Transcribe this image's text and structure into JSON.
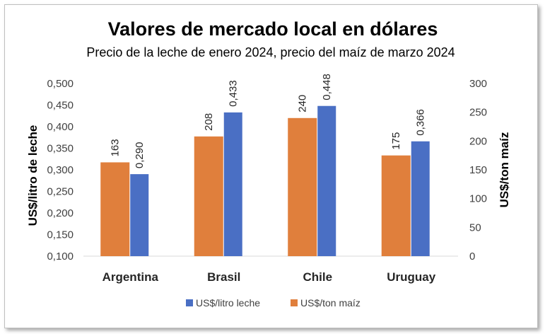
{
  "chart_data": {
    "type": "bar",
    "title": "Valores de mercado local en dólares",
    "subtitle": "Precio de la leche de enero 2024, precio del maíz de marzo 2024",
    "categories": [
      "Argentina",
      "Brasil",
      "Chile",
      "Uruguay"
    ],
    "ylabel_left": "US$/litro de leche",
    "ylabel_right": "US$/ton maíz",
    "y_left": {
      "min": 0.1,
      "max": 0.5,
      "step": 0.05,
      "ticks": [
        "0,100",
        "0,150",
        "0,200",
        "0,250",
        "0,300",
        "0,350",
        "0,400",
        "0,450",
        "0,500"
      ]
    },
    "y_right": {
      "min": 0,
      "max": 300,
      "step": 50,
      "ticks": [
        "0",
        "50",
        "100",
        "150",
        "200",
        "250",
        "300"
      ]
    },
    "series": [
      {
        "name": "US$/ton maíz",
        "axis": "right",
        "color": "#E07F3C",
        "values": [
          163,
          208,
          240,
          175
        ],
        "labels": [
          "163",
          "208",
          "240",
          "175"
        ]
      },
      {
        "name": "US$/litro leche",
        "axis": "left",
        "color": "#4A6FC4",
        "values": [
          0.29,
          0.433,
          0.448,
          0.366
        ],
        "labels": [
          "0,290",
          "0,433",
          "0,448",
          "0,366"
        ]
      }
    ],
    "legend_position": "bottom",
    "legend_order": [
      "US$/litro leche",
      "US$/ton maíz"
    ],
    "grid": false
  }
}
